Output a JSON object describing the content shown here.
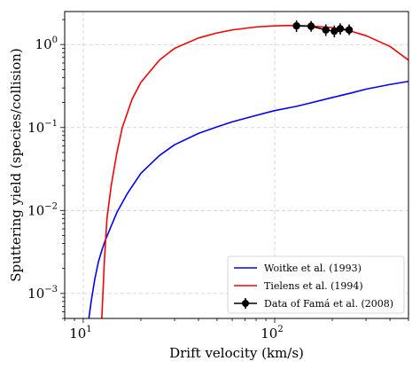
{
  "chart_data": {
    "type": "line",
    "xlabel": "Drift velocity (km/s)",
    "ylabel": "Sputtering yield (species/collision)",
    "xscale": "log",
    "yscale": "log",
    "xlim": [
      8,
      500
    ],
    "ylim": [
      0.0005,
      2.5
    ],
    "grid": true,
    "legend_position": "bottom-right",
    "x_ticks": [
      {
        "base": "10",
        "exp": "1",
        "value": 10
      },
      {
        "base": "10",
        "exp": "2",
        "value": 100
      }
    ],
    "y_ticks": [
      {
        "base": "10",
        "exp": "0",
        "value": 1
      },
      {
        "base": "10",
        "exp": "−1",
        "value": 0.1
      },
      {
        "base": "10",
        "exp": "−2",
        "value": 0.01
      },
      {
        "base": "10",
        "exp": "−3",
        "value": 0.001
      }
    ],
    "series": [
      {
        "name": "Woitke et al. (1993)",
        "color": "#0000ff",
        "style": "line",
        "x": [
          10.7,
          11.0,
          11.5,
          12.0,
          12.5,
          13.0,
          14,
          15,
          17,
          20,
          25,
          30,
          40,
          50,
          60,
          80,
          100,
          130,
          150,
          200,
          250,
          300,
          400,
          500
        ],
        "y": [
          0.0005,
          0.0008,
          0.0015,
          0.0024,
          0.0033,
          0.0043,
          0.0065,
          0.0095,
          0.016,
          0.028,
          0.046,
          0.062,
          0.085,
          0.102,
          0.117,
          0.14,
          0.16,
          0.18,
          0.195,
          0.23,
          0.26,
          0.29,
          0.33,
          0.36
        ]
      },
      {
        "name": "Tielens et al. (1994)",
        "color": "#ff0000",
        "style": "line",
        "x": [
          12.5,
          12.9,
          13.3,
          14,
          15,
          16,
          18,
          20,
          25,
          30,
          40,
          50,
          60,
          80,
          100,
          120,
          150,
          200,
          250,
          300,
          400,
          500
        ],
        "y": [
          0.0005,
          0.0025,
          0.008,
          0.02,
          0.05,
          0.1,
          0.22,
          0.35,
          0.65,
          0.9,
          1.2,
          1.38,
          1.5,
          1.63,
          1.68,
          1.7,
          1.68,
          1.6,
          1.45,
          1.28,
          0.95,
          0.65
        ]
      },
      {
        "name": "Data of Famá et al. (2008)",
        "color": "#000000",
        "style": "errorbar",
        "x": [
          130,
          155,
          185,
          205,
          220,
          245
        ],
        "y": [
          1.68,
          1.66,
          1.5,
          1.45,
          1.55,
          1.5
        ],
        "yerr_low": [
          1.42,
          1.43,
          1.27,
          1.22,
          1.32,
          1.3
        ],
        "yerr_high": [
          1.95,
          1.92,
          1.75,
          1.7,
          1.8,
          1.75
        ]
      }
    ]
  }
}
